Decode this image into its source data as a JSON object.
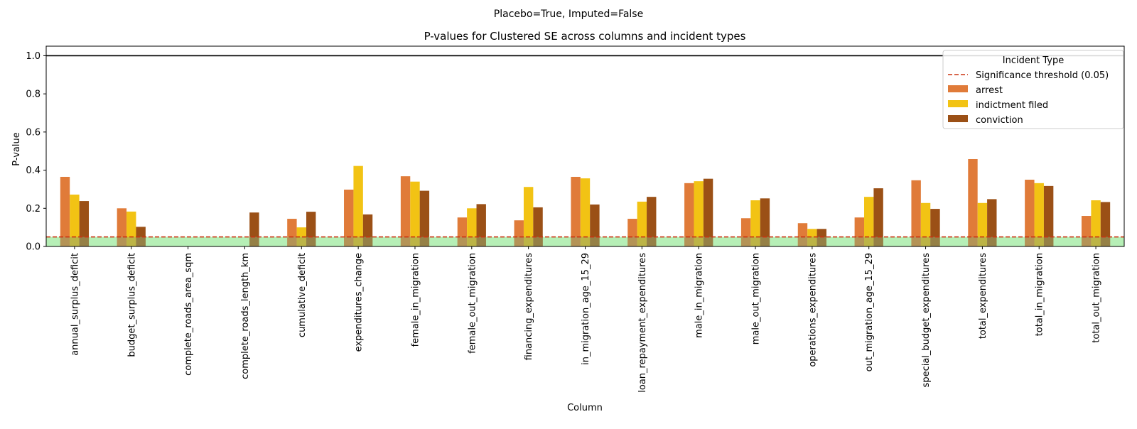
{
  "chart_data": {
    "type": "bar",
    "suptitle": "Placebo=True, Imputed=False",
    "title": "P-values for Clustered SE across columns and incident types",
    "xlabel": "Column",
    "ylabel": "P-value",
    "ylim": [
      0,
      1.05
    ],
    "yticks": [
      "0.0",
      "0.2",
      "0.4",
      "0.6",
      "0.8",
      "1.0"
    ],
    "categories": [
      "annual_surplus_deficit",
      "budget_surplus_deficit",
      "complete_roads_area_sqm",
      "complete_roads_length_km",
      "cumulative_deficit",
      "expenditures_change",
      "female_in_migration",
      "female_out_migration",
      "financing_expenditures",
      "in_migration_age_15_29",
      "loan_repayment_expenditures",
      "male_in_migration",
      "male_out_migration",
      "operations_expenditures",
      "out_migration_age_15_29",
      "special_budget_expenditures",
      "total_expenditures",
      "total_in_migration",
      "total_out_migration"
    ],
    "series": [
      {
        "name": "arrest",
        "color": "#e07b39",
        "values": [
          0.365,
          0.2,
          null,
          null,
          0.145,
          0.298,
          0.368,
          0.152,
          0.137,
          0.365,
          0.145,
          0.332,
          0.148,
          0.122,
          0.152,
          0.347,
          0.458,
          0.35,
          0.16
        ]
      },
      {
        "name": "indictment filed",
        "color": "#f2c314",
        "values": [
          0.272,
          0.183,
          null,
          null,
          0.1,
          0.422,
          0.34,
          0.2,
          0.312,
          0.357,
          0.235,
          0.342,
          0.242,
          0.092,
          0.26,
          0.228,
          0.228,
          0.332,
          0.242
        ]
      },
      {
        "name": "conviction",
        "color": "#9b5016",
        "values": [
          0.238,
          0.103,
          null,
          0.178,
          0.182,
          0.168,
          0.292,
          0.222,
          0.205,
          0.22,
          0.26,
          0.355,
          0.252,
          0.092,
          0.305,
          0.197,
          0.248,
          0.317,
          0.233
        ]
      }
    ],
    "threshold": {
      "label": "Significance threshold (0.05)",
      "value": 0.05,
      "color": "#cc3311"
    },
    "reference_line": 1.0,
    "significance_band_color": "#b6efb6",
    "legend": {
      "title": "Incident Type",
      "placement": "top-right"
    },
    "grid": false
  }
}
